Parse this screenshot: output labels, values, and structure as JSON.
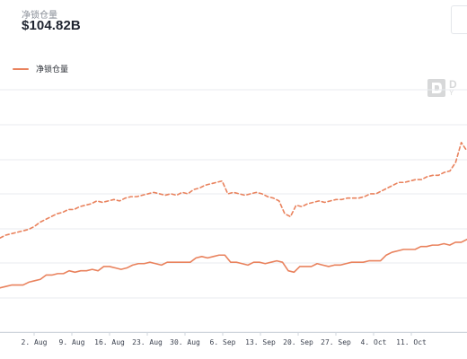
{
  "header": {
    "metric_label": "净锁仓量",
    "metric_value": "$104.82B"
  },
  "legend": {
    "label": "净锁仓量",
    "color": "#e9825d"
  },
  "watermark": {
    "text": "D",
    "subtext": "Y"
  },
  "chart_data": {
    "type": "line",
    "title": "",
    "xlabel": "",
    "ylabel": "",
    "legend_position": "top-left",
    "grid": true,
    "x_ticks": [
      "2. Aug",
      "9. Aug",
      "16. Aug",
      "23. Aug",
      "30. Aug",
      "6. Sep",
      "13. Sep",
      "20. Sep",
      "27. Sep",
      "4. Oct",
      "11. Oct"
    ],
    "series": [
      {
        "name": "净锁仓量",
        "style": "solid",
        "color": "#e9825d",
        "values": [
          86,
          87,
          88,
          88,
          88,
          90,
          91,
          92,
          95,
          95,
          96,
          96,
          98,
          97,
          98,
          98,
          99,
          98,
          101,
          101,
          100,
          99,
          100,
          102,
          103,
          103,
          104,
          103,
          102,
          104,
          104,
          104,
          104,
          104,
          107,
          108,
          107,
          108,
          109,
          109,
          104,
          104,
          103,
          102,
          104,
          104,
          103,
          104,
          105,
          104,
          98,
          97,
          101,
          101,
          101,
          103,
          102,
          101,
          102,
          102,
          103,
          104,
          104,
          104,
          105,
          105,
          105,
          109,
          111,
          112,
          113,
          113,
          113,
          115,
          115,
          116,
          116,
          117,
          116,
          118,
          118,
          120
        ]
      },
      {
        "name": "",
        "style": "dashed",
        "color": "#e9825d",
        "values": [
          121,
          123,
          124,
          125,
          126,
          127,
          129,
          132,
          134,
          136,
          138,
          139,
          141,
          141,
          143,
          144,
          145,
          147,
          146,
          147,
          148,
          147,
          149,
          150,
          150,
          151,
          152,
          153,
          152,
          151,
          152,
          151,
          153,
          152,
          155,
          156,
          158,
          159,
          160,
          161,
          152,
          153,
          152,
          151,
          152,
          153,
          152,
          150,
          149,
          147,
          138,
          136,
          144,
          143,
          145,
          146,
          147,
          146,
          147,
          148,
          148,
          149,
          149,
          149,
          150,
          152,
          152,
          154,
          156,
          158,
          160,
          160,
          161,
          162,
          162,
          164,
          165,
          165,
          167,
          168,
          174,
          188,
          182
        ]
      }
    ]
  }
}
